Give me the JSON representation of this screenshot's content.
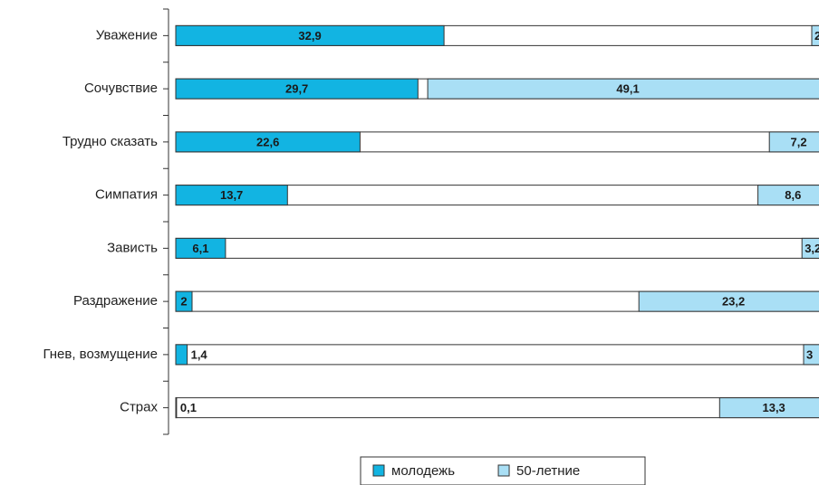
{
  "chart_data": {
    "type": "bar",
    "orientation": "horizontal",
    "categories": [
      "Уважение",
      "Сочувствие",
      "Трудно сказать",
      "Симпатия",
      "Зависть",
      "Раздражение",
      "Гнев, возмущение",
      "Страх"
    ],
    "xlim": [
      0,
      80
    ],
    "series": [
      {
        "name": "молодежь",
        "color": "#12b4e2",
        "align": "left",
        "values": [
          32.9,
          29.7,
          22.6,
          13.7,
          6.1,
          2,
          1.4,
          0.1
        ],
        "value_labels": [
          "32,9",
          "29,7",
          "22,6",
          "13,7",
          "6,1",
          "2",
          "1,4",
          "0,1"
        ]
      },
      {
        "name": "50-летние",
        "color": "#a9dff5",
        "align": "right",
        "values": [
          2,
          49.1,
          7.2,
          8.6,
          3.2,
          23.2,
          3,
          13.3
        ],
        "value_labels": [
          "2",
          "49,1",
          "7,2",
          "8,6",
          "3,2",
          "23,2",
          "3",
          "13,3"
        ]
      }
    ]
  }
}
